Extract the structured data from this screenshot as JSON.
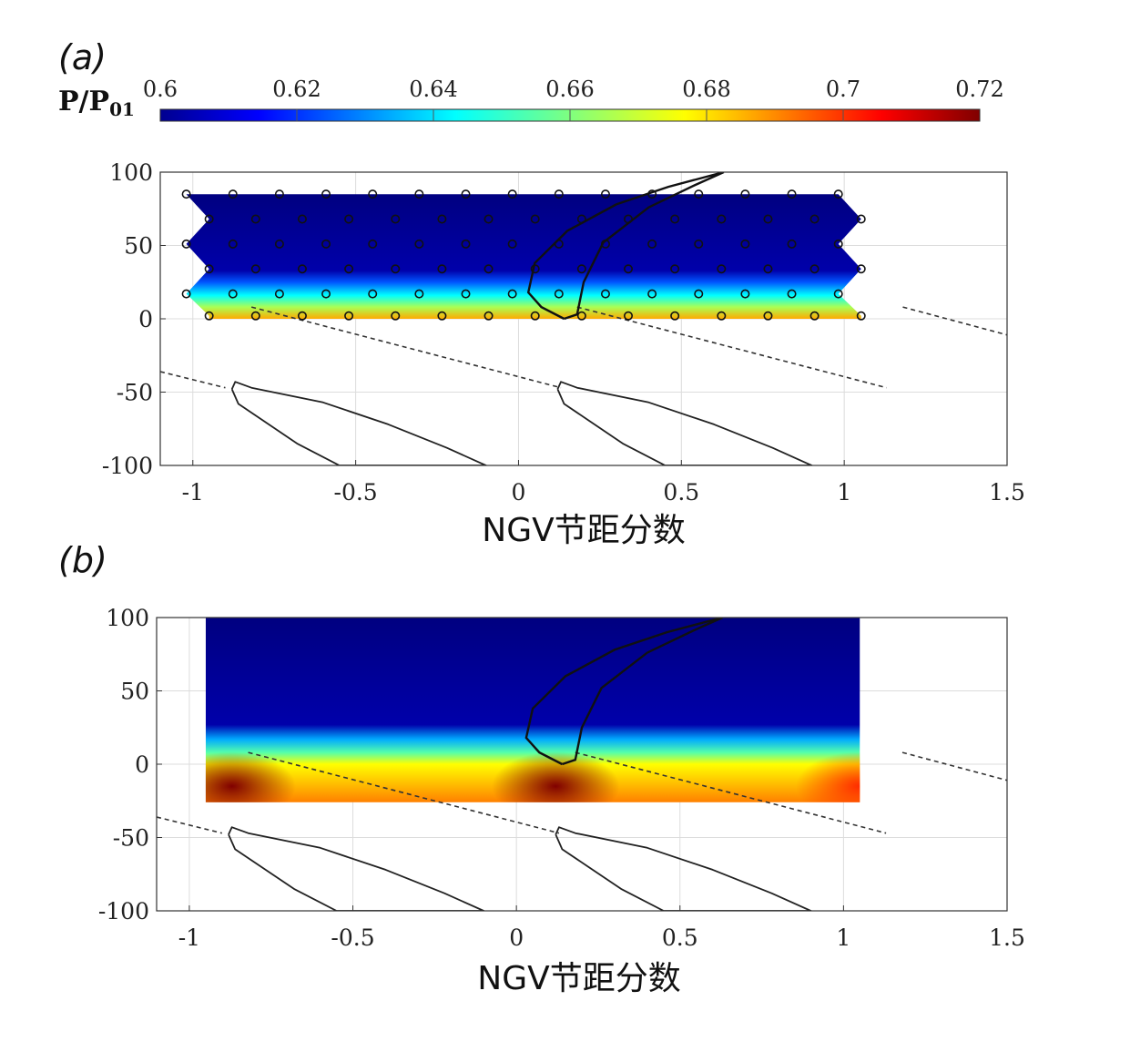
{
  "colorbar": {
    "label_main": "P/P",
    "label_sub": "01",
    "ticks": [
      "0.6",
      "0.62",
      "0.64",
      "0.66",
      "0.68",
      "0.7",
      "0.72"
    ],
    "range": [
      0.6,
      0.72
    ],
    "colormap": "jet"
  },
  "chart_data": [
    {
      "type": "heatmap",
      "panel_label": "(a)",
      "title": "",
      "xlabel": "NGV节距分数",
      "ylabel": "",
      "xlim": [
        -1.1,
        1.5
      ],
      "ylim": [
        -100,
        100
      ],
      "xticks": [
        "-1",
        "-0.5",
        "0",
        "0.5",
        "1",
        "1.5"
      ],
      "yticks": [
        "100",
        "50",
        "0",
        "-50",
        "-100"
      ],
      "grid": true,
      "field": {
        "x_extent": [
          -0.95,
          1.05
        ],
        "y_extent": [
          0,
          85
        ],
        "bands": [
          {
            "y": 0,
            "value": 0.685
          },
          {
            "y": 8,
            "value": 0.665
          },
          {
            "y": 16,
            "value": 0.645
          },
          {
            "y": 25,
            "value": 0.625
          },
          {
            "y": 33,
            "value": 0.605
          },
          {
            "y": 85,
            "value": 0.6
          }
        ]
      },
      "probe_points": {
        "rows": [
          {
            "y": 85,
            "x_start": -1.02,
            "count": 15
          },
          {
            "y": 68,
            "x_start": -0.95,
            "count": 15
          },
          {
            "y": 51,
            "x_start": -1.02,
            "count": 15
          },
          {
            "y": 34,
            "x_start": -0.95,
            "count": 15
          },
          {
            "y": 17,
            "x_start": -1.02,
            "count": 15
          },
          {
            "y": 2,
            "x_start": -0.95,
            "count": 15
          }
        ],
        "spacing": 0.143
      },
      "rotor_blade": {
        "points": [
          [
            0.14,
            0
          ],
          [
            0.07,
            8
          ],
          [
            0.03,
            18
          ],
          [
            0.05,
            38
          ],
          [
            0.15,
            60
          ],
          [
            0.3,
            78
          ],
          [
            0.46,
            90
          ],
          [
            0.63,
            100
          ],
          [
            0.54,
            91
          ],
          [
            0.4,
            76
          ],
          [
            0.26,
            52
          ],
          [
            0.2,
            25
          ],
          [
            0.18,
            3
          ],
          [
            0.14,
            0
          ]
        ]
      },
      "ngv_blades": {
        "offsets": [
          -1,
          0,
          1
        ],
        "points": [
          [
            -0.88,
            -48
          ],
          [
            -0.87,
            -43
          ],
          [
            -0.82,
            -47
          ],
          [
            -0.6,
            -57
          ],
          [
            -0.4,
            -72
          ],
          [
            -0.22,
            -88
          ],
          [
            -0.1,
            -100
          ],
          [
            -0.55,
            -100
          ],
          [
            -0.68,
            -85
          ],
          [
            -0.78,
            -70
          ],
          [
            -0.86,
            -58
          ],
          [
            -0.88,
            -48
          ]
        ]
      },
      "dashed_lines": [
        {
          "points": [
            [
              -1.1,
              -36
            ],
            [
              -0.9,
              -47
            ]
          ]
        },
        {
          "points": [
            [
              -0.82,
              8
            ],
            [
              0.13,
              -47
            ]
          ]
        },
        {
          "points": [
            [
              0.18,
              8
            ],
            [
              1.13,
              -47
            ]
          ]
        },
        {
          "points": [
            [
              1.18,
              8
            ],
            [
              1.5,
              -11
            ]
          ]
        }
      ]
    },
    {
      "type": "heatmap",
      "panel_label": "(b)",
      "title": "",
      "xlabel": "NGV节距分数",
      "ylabel": "",
      "xlim": [
        -1.1,
        1.5
      ],
      "ylim": [
        -100,
        100
      ],
      "xticks": [
        "-1",
        "-0.5",
        "0",
        "0.5",
        "1",
        "1.5"
      ],
      "yticks": [
        "100",
        "50",
        "0",
        "-50",
        "-100"
      ],
      "grid": true,
      "field": {
        "x_extent": [
          -0.95,
          1.05
        ],
        "y_extent": [
          -26,
          100
        ],
        "bands": [
          {
            "y": -26,
            "value": 0.69
          },
          {
            "y": 0,
            "value": 0.675
          },
          {
            "y": 8,
            "value": 0.655
          },
          {
            "y": 17,
            "value": 0.635
          },
          {
            "y": 27,
            "value": 0.605
          },
          {
            "y": 100,
            "value": 0.6
          }
        ],
        "hotspots": [
          {
            "x": -0.87,
            "y": -15,
            "value": 0.72
          },
          {
            "x": 0.12,
            "y": -15,
            "value": 0.72
          },
          {
            "x": 1.05,
            "y": -15,
            "value": 0.7
          }
        ]
      },
      "rotor_blade": {
        "points": [
          [
            0.14,
            0
          ],
          [
            0.07,
            8
          ],
          [
            0.03,
            18
          ],
          [
            0.05,
            38
          ],
          [
            0.15,
            60
          ],
          [
            0.3,
            78
          ],
          [
            0.46,
            90
          ],
          [
            0.63,
            100
          ],
          [
            0.54,
            91
          ],
          [
            0.4,
            76
          ],
          [
            0.26,
            52
          ],
          [
            0.2,
            25
          ],
          [
            0.18,
            3
          ],
          [
            0.14,
            0
          ]
        ]
      },
      "ngv_blades": {
        "offsets": [
          -1,
          0,
          1
        ],
        "points": [
          [
            -0.88,
            -48
          ],
          [
            -0.87,
            -43
          ],
          [
            -0.82,
            -47
          ],
          [
            -0.6,
            -57
          ],
          [
            -0.4,
            -72
          ],
          [
            -0.22,
            -88
          ],
          [
            -0.1,
            -100
          ],
          [
            -0.55,
            -100
          ],
          [
            -0.68,
            -85
          ],
          [
            -0.78,
            -70
          ],
          [
            -0.86,
            -58
          ],
          [
            -0.88,
            -48
          ]
        ]
      },
      "dashed_lines": [
        {
          "points": [
            [
              -1.1,
              -36
            ],
            [
              -0.9,
              -47
            ]
          ]
        },
        {
          "points": [
            [
              -0.82,
              8
            ],
            [
              0.13,
              -47
            ]
          ]
        },
        {
          "points": [
            [
              0.18,
              8
            ],
            [
              1.13,
              -47
            ]
          ]
        },
        {
          "points": [
            [
              1.18,
              8
            ],
            [
              1.5,
              -11
            ]
          ]
        }
      ]
    }
  ]
}
